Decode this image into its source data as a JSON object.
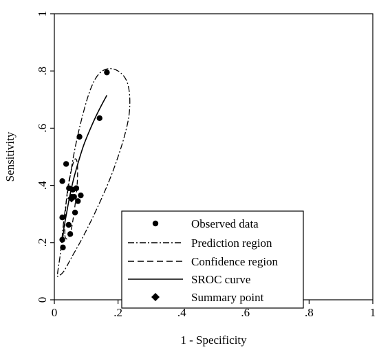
{
  "chart_data": {
    "type": "scatter",
    "xlabel": "1 - Specificity",
    "ylabel": "Sensitivity",
    "xlim": [
      0,
      1
    ],
    "ylim": [
      0,
      1
    ],
    "x_ticks": [
      0,
      0.2,
      0.4,
      0.6,
      0.8,
      1
    ],
    "x_tick_labels": [
      "0",
      ".2",
      ".4",
      ".6",
      ".8",
      "1"
    ],
    "y_ticks": [
      0,
      0.2,
      0.4,
      0.6,
      0.8,
      1
    ],
    "y_tick_labels": [
      "0",
      ".2",
      ".4",
      ".6",
      ".8",
      "1"
    ],
    "grid": false,
    "legend_position": "bottom-right",
    "legend": [
      {
        "key": "observed",
        "label": "Observed data",
        "marker": "dot"
      },
      {
        "key": "prediction",
        "label": "Prediction region",
        "line": "dash-dot"
      },
      {
        "key": "confidence",
        "label": "Confidence region",
        "line": "dashed"
      },
      {
        "key": "sroc",
        "label": "SROC curve",
        "line": "solid"
      },
      {
        "key": "summary",
        "label": "Summary point",
        "marker": "diamond"
      }
    ],
    "series": [
      {
        "key": "observed",
        "points": [
          [
            0.165,
            0.795
          ],
          [
            0.142,
            0.635
          ],
          [
            0.079,
            0.57
          ],
          [
            0.037,
            0.475
          ],
          [
            0.025,
            0.415
          ],
          [
            0.046,
            0.39
          ],
          [
            0.058,
            0.385
          ],
          [
            0.069,
            0.39
          ],
          [
            0.062,
            0.36
          ],
          [
            0.083,
            0.365
          ],
          [
            0.074,
            0.345
          ],
          [
            0.055,
            0.36
          ],
          [
            0.065,
            0.305
          ],
          [
            0.025,
            0.288
          ],
          [
            0.045,
            0.262
          ],
          [
            0.05,
            0.23
          ],
          [
            0.025,
            0.21
          ],
          [
            0.027,
            0.183
          ]
        ]
      },
      {
        "key": "prediction",
        "points": [
          [
            0.01,
            0.09
          ],
          [
            0.02,
            0.17
          ],
          [
            0.03,
            0.28
          ],
          [
            0.045,
            0.4
          ],
          [
            0.065,
            0.53
          ],
          [
            0.09,
            0.65
          ],
          [
            0.115,
            0.74
          ],
          [
            0.14,
            0.79
          ],
          [
            0.17,
            0.808
          ],
          [
            0.2,
            0.8
          ],
          [
            0.225,
            0.77
          ],
          [
            0.236,
            0.72
          ],
          [
            0.235,
            0.65
          ],
          [
            0.222,
            0.58
          ],
          [
            0.2,
            0.5
          ],
          [
            0.17,
            0.41
          ],
          [
            0.13,
            0.31
          ],
          [
            0.09,
            0.22
          ],
          [
            0.055,
            0.15
          ],
          [
            0.03,
            0.1
          ],
          [
            0.015,
            0.085
          ],
          [
            0.01,
            0.09
          ]
        ]
      },
      {
        "key": "confidence",
        "points": [
          [
            0.033,
            0.23
          ],
          [
            0.034,
            0.29
          ],
          [
            0.038,
            0.35
          ],
          [
            0.045,
            0.41
          ],
          [
            0.055,
            0.46
          ],
          [
            0.063,
            0.49
          ],
          [
            0.07,
            0.488
          ],
          [
            0.073,
            0.46
          ],
          [
            0.072,
            0.41
          ],
          [
            0.067,
            0.35
          ],
          [
            0.06,
            0.29
          ],
          [
            0.052,
            0.24
          ],
          [
            0.043,
            0.215
          ],
          [
            0.036,
            0.215
          ],
          [
            0.033,
            0.23
          ]
        ]
      },
      {
        "key": "sroc",
        "points": [
          [
            0.025,
            0.2
          ],
          [
            0.03,
            0.25
          ],
          [
            0.038,
            0.3
          ],
          [
            0.048,
            0.36
          ],
          [
            0.06,
            0.42
          ],
          [
            0.075,
            0.48
          ],
          [
            0.092,
            0.54
          ],
          [
            0.11,
            0.59
          ],
          [
            0.13,
            0.64
          ],
          [
            0.148,
            0.68
          ],
          [
            0.165,
            0.715
          ]
        ]
      },
      {
        "key": "summary",
        "points": [
          [
            0.054,
            0.355
          ]
        ]
      }
    ]
  }
}
